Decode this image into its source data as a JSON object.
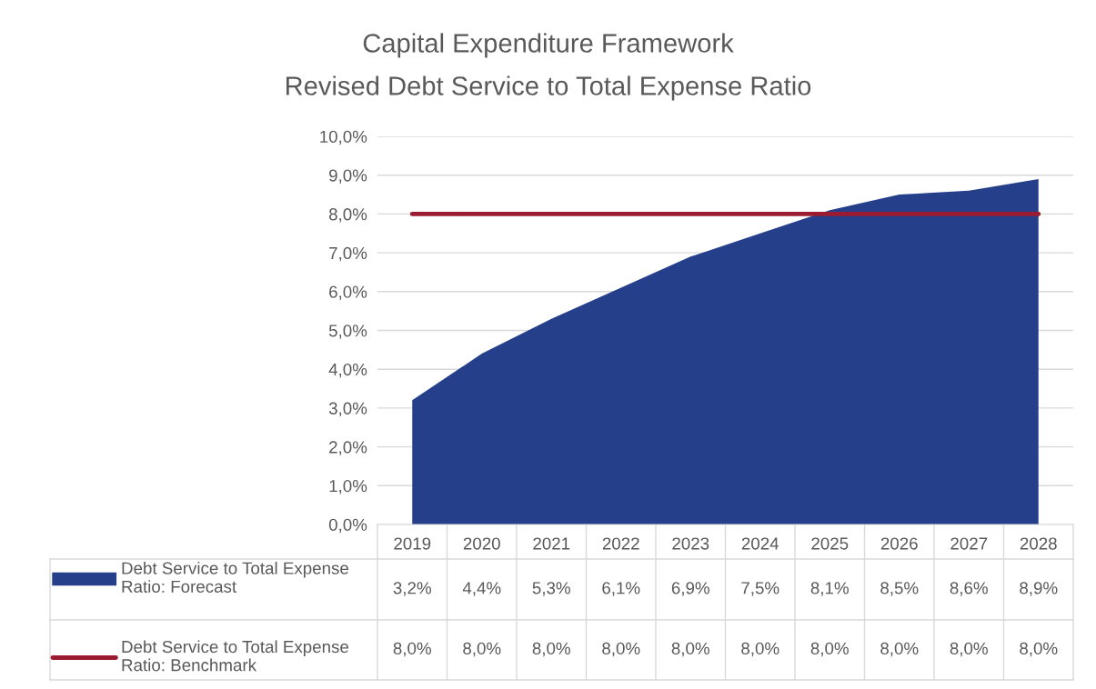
{
  "chart_data": {
    "type": "area",
    "title": "Capital Expenditure Framework",
    "subtitle": "Revised Debt Service to Total Expense Ratio",
    "categories": [
      "2019",
      "2020",
      "2021",
      "2022",
      "2023",
      "2024",
      "2025",
      "2026",
      "2027",
      "2028"
    ],
    "series": [
      {
        "name": "Debt Service to Total Expense Ratio: Forecast",
        "type": "area",
        "color": "#253f8a",
        "values": [
          3.2,
          4.4,
          5.3,
          6.1,
          6.9,
          7.5,
          8.1,
          8.5,
          8.6,
          8.9
        ],
        "value_labels": [
          "3,2%",
          "4,4%",
          "5,3%",
          "6,1%",
          "6,9%",
          "7,5%",
          "8,1%",
          "8,5%",
          "8,6%",
          "8,9%"
        ]
      },
      {
        "name": "Debt Service to Total Expense Ratio: Benchmark",
        "type": "line",
        "color": "#9b1b30",
        "values": [
          8.0,
          8.0,
          8.0,
          8.0,
          8.0,
          8.0,
          8.0,
          8.0,
          8.0,
          8.0
        ],
        "value_labels": [
          "8,0%",
          "8,0%",
          "8,0%",
          "8,0%",
          "8,0%",
          "8,0%",
          "8,0%",
          "8,0%",
          "8,0%",
          "8,0%"
        ]
      }
    ],
    "ylim": [
      0,
      10
    ],
    "yticks": [
      {
        "value": 0,
        "label": "0,0%"
      },
      {
        "value": 1,
        "label": "1,0%"
      },
      {
        "value": 2,
        "label": "2,0%"
      },
      {
        "value": 3,
        "label": "3,0%"
      },
      {
        "value": 4,
        "label": "4,0%"
      },
      {
        "value": 5,
        "label": "5,0%"
      },
      {
        "value": 6,
        "label": "6,0%"
      },
      {
        "value": 7,
        "label": "7,0%"
      },
      {
        "value": 8,
        "label": "8,0%"
      },
      {
        "value": 9,
        "label": "9,0%"
      },
      {
        "value": 10,
        "label": "10,0%"
      }
    ],
    "grid": "y",
    "legend": "bottom"
  }
}
